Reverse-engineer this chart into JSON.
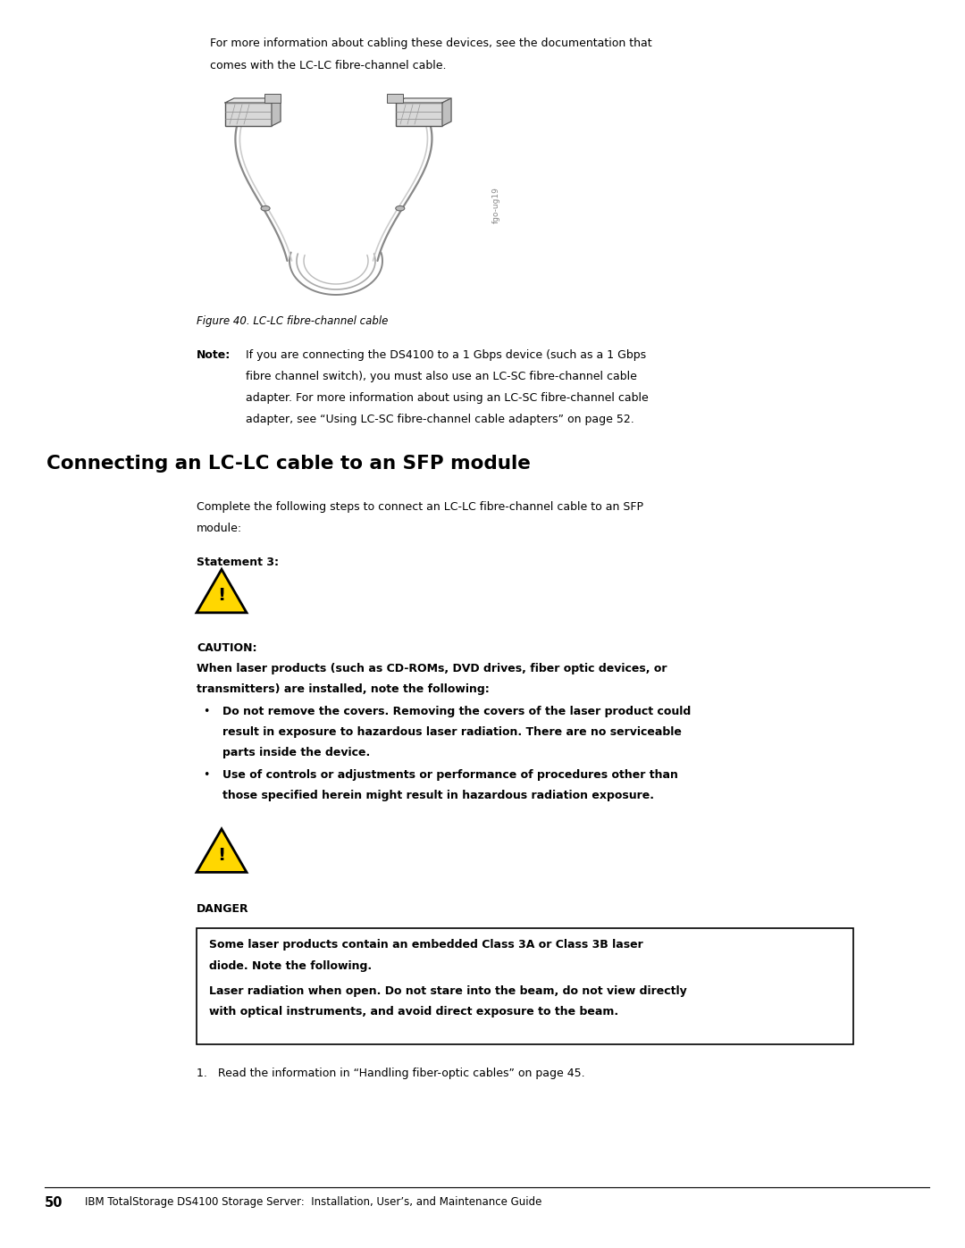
{
  "bg_color": "#ffffff",
  "text_color": "#000000",
  "page_width": 10.8,
  "page_height": 13.97,
  "body_text_size": 9.0,
  "note_text_size": 9.0,
  "heading_text_size": 15.5,
  "small_text_size": 8.0,
  "caption_text_size": 8.5,
  "footer_text_size": 8.5,
  "indent_text": 2.35,
  "indent_note": 2.75,
  "intro_text_line1": "For more information about cabling these devices, see the documentation that",
  "intro_text_line2": "comes with the LC-LC fibre-channel cable.",
  "figure_caption": "Figure 40. LC-LC fibre-channel cable",
  "note_label": "Note:",
  "note_line1": "If you are connecting the DS4100 to a 1 Gbps device (such as a 1 Gbps",
  "note_line2": "fibre channel switch), you must also use an LC-SC fibre-channel cable",
  "note_line3": "adapter. For more information about using an LC-SC fibre-channel cable",
  "note_line4": "adapter, see “Using LC-SC fibre-channel cable adapters” on page 52.",
  "section_heading": "Connecting an LC-LC cable to an SFP module",
  "section_intro_line1": "Complete the following steps to connect an LC-LC fibre-channel cable to an SFP",
  "section_intro_line2": "module:",
  "statement_label": "Statement 3:",
  "caution_label": "CAUTION:",
  "caution_bold_line1": "When laser products (such as CD-ROMs, DVD drives, fiber optic devices, or",
  "caution_bold_line2": "transmitters) are installed, note the following:",
  "bullet1_line1": "Do not remove the covers. Removing the covers of the laser product could",
  "bullet1_line2": "result in exposure to hazardous laser radiation. There are no serviceable",
  "bullet1_line3": "parts inside the device.",
  "bullet2_line1": "Use of controls or adjustments or performance of procedures other than",
  "bullet2_line2": "those specified herein might result in hazardous radiation exposure.",
  "danger_label": "DANGER",
  "danger_box_line1": "Some laser products contain an embedded Class 3A or Class 3B laser",
  "danger_box_line2": "diode. Note the following.",
  "danger_box_line3": "Laser radiation when open. Do not stare into the beam, do not view directly",
  "danger_box_line4": "with optical instruments, and avoid direct exposure to the beam.",
  "step1_text": "1.   Read the information in “Handling fiber-optic cables” on page 45.",
  "footer_page": "50",
  "footer_text": "IBM TotalStorage DS4100 Storage Server:  Installation, User’s, and Maintenance Guide",
  "yellow_color": "#FFD700",
  "black_color": "#000000",
  "cable_color": "#aaaaaa",
  "cable_edge": "#555555",
  "connector_fill": "#cccccc",
  "connector_edge": "#666666",
  "fig_label": "fgo-ug19"
}
